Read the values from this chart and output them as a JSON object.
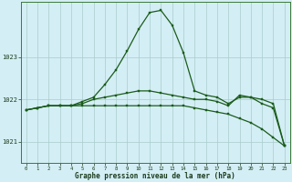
{
  "title": "Graphe pression niveau de la mer (hPa)",
  "bg_color": "#d4eef5",
  "plot_bg_color": "#d4eef5",
  "grid_color": "#a8cccc",
  "line_color_main": "#1a5c1a",
  "xlim": [
    -0.5,
    23.5
  ],
  "ylim": [
    1020.5,
    1024.3
  ],
  "yticks": [
    1021,
    1022,
    1023
  ],
  "xticks": [
    0,
    1,
    2,
    3,
    4,
    5,
    6,
    7,
    8,
    9,
    10,
    11,
    12,
    13,
    14,
    15,
    16,
    17,
    18,
    19,
    20,
    21,
    22,
    23
  ],
  "series1": [
    1021.75,
    1021.8,
    1021.85,
    1021.85,
    1021.85,
    1021.95,
    1022.05,
    1022.35,
    1022.7,
    1023.15,
    1023.65,
    1024.05,
    1024.1,
    1023.75,
    1023.1,
    1022.2,
    1022.1,
    1022.05,
    1021.9,
    1022.05,
    1022.05,
    1021.9,
    1021.8,
    1020.9
  ],
  "series2": [
    1021.75,
    1021.8,
    1021.85,
    1021.85,
    1021.85,
    1021.9,
    1022.0,
    1022.05,
    1022.1,
    1022.15,
    1022.2,
    1022.2,
    1022.15,
    1022.1,
    1022.05,
    1022.0,
    1022.0,
    1021.95,
    1021.85,
    1022.1,
    1022.05,
    1022.0,
    1021.9,
    1020.9
  ],
  "series3": [
    1021.75,
    1021.8,
    1021.85,
    1021.85,
    1021.85,
    1021.85,
    1021.85,
    1021.85,
    1021.85,
    1021.85,
    1021.85,
    1021.85,
    1021.85,
    1021.85,
    1021.85,
    1021.8,
    1021.75,
    1021.7,
    1021.65,
    1021.55,
    1021.45,
    1021.3,
    1021.1,
    1020.9
  ],
  "markersize": 2.0,
  "linewidth": 0.9
}
